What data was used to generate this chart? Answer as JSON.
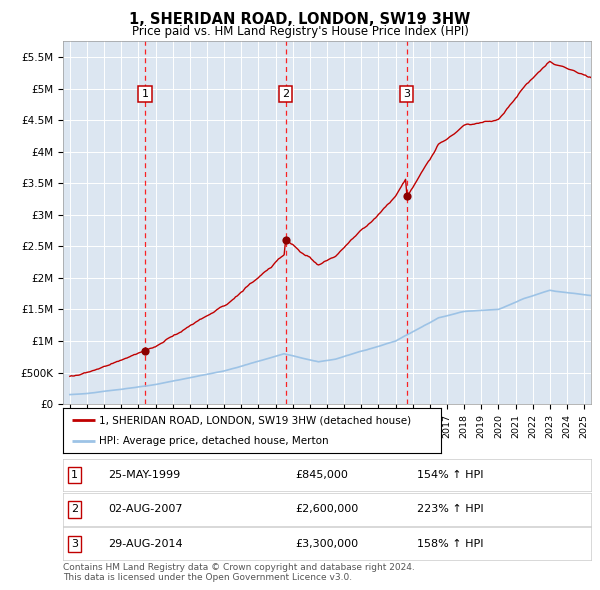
{
  "title": "1, SHERIDAN ROAD, LONDON, SW19 3HW",
  "subtitle": "Price paid vs. HM Land Registry's House Price Index (HPI)",
  "legend_line1": "1, SHERIDAN ROAD, LONDON, SW19 3HW (detached house)",
  "legend_line2": "HPI: Average price, detached house, Merton",
  "footnote1": "Contains HM Land Registry data © Crown copyright and database right 2024.",
  "footnote2": "This data is licensed under the Open Government Licence v3.0.",
  "table": [
    {
      "num": "1",
      "date": "25-MAY-1999",
      "price": "£845,000",
      "pct": "154% ↑ HPI"
    },
    {
      "num": "2",
      "date": "02-AUG-2007",
      "price": "£2,600,000",
      "pct": "223% ↑ HPI"
    },
    {
      "num": "3",
      "date": "29-AUG-2014",
      "price": "£3,300,000",
      "pct": "158% ↑ HPI"
    }
  ],
  "sale_dates_decimal": [
    1999.38,
    2007.58,
    2014.66
  ],
  "sale_prices": [
    845000,
    2600000,
    3300000
  ],
  "ylim": [
    0,
    5750000
  ],
  "yticks": [
    0,
    500000,
    1000000,
    1500000,
    2000000,
    2500000,
    3000000,
    3500000,
    4000000,
    4500000,
    5000000,
    5500000
  ],
  "ytick_labels": [
    "£0",
    "£500K",
    "£1M",
    "£1.5M",
    "£2M",
    "£2.5M",
    "£3M",
    "£3.5M",
    "£4M",
    "£4.5M",
    "£5M",
    "£5.5M"
  ],
  "xlim_start": 1994.6,
  "xlim_end": 2025.4,
  "background_color": "#dce6f1",
  "grid_color": "#ffffff",
  "red_line_color": "#c00000",
  "blue_line_color": "#9dc3e6",
  "sale_marker_color": "#8b0000",
  "annotation_box_color": "#c00000"
}
